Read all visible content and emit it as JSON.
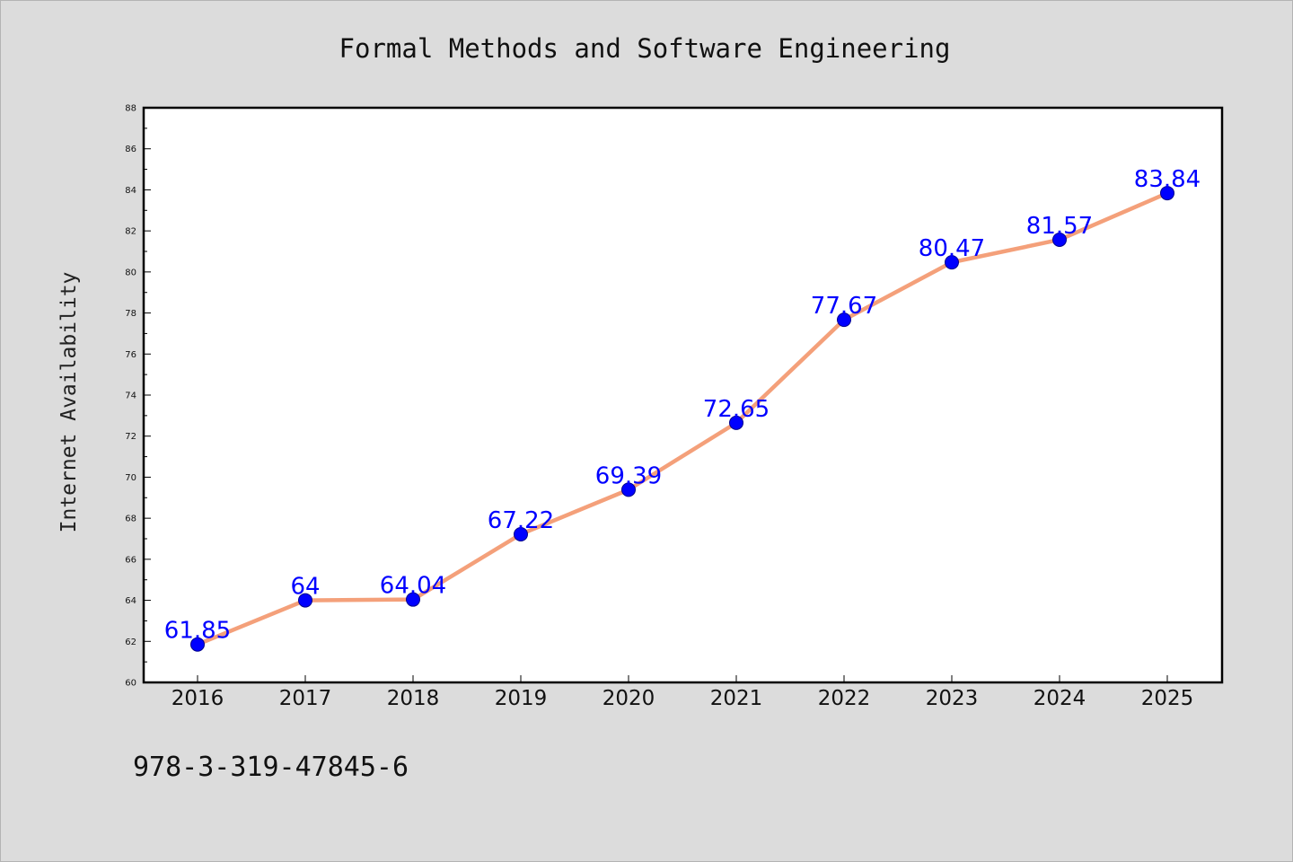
{
  "chart_data": {
    "type": "line",
    "title": "Formal Methods and Software Engineering",
    "xlabel": "",
    "ylabel": "Internet Availability",
    "categories": [
      "2016",
      "2017",
      "2018",
      "2019",
      "2020",
      "2021",
      "2022",
      "2023",
      "2024",
      "2025"
    ],
    "series": [
      {
        "values": [
          61.85,
          64,
          64.04,
          67.22,
          69.39,
          72.65,
          77.67,
          80.47,
          81.57,
          83.84
        ],
        "line_color": "#f4a07a",
        "marker_color": "#0000ff"
      }
    ],
    "data_labels": [
      "61.85",
      "64",
      "64.04",
      "67.22",
      "69.39",
      "72.65",
      "77.67",
      "80.47",
      "81.57",
      "83.84"
    ],
    "ylim": [
      60,
      88
    ],
    "yticks": [
      "60",
      "62",
      "64",
      "66",
      "68",
      "70",
      "72",
      "74",
      "76",
      "78",
      "80",
      "82",
      "84",
      "86",
      "88"
    ],
    "grid": false,
    "legend": "none",
    "label_color": "#0000ff"
  },
  "footer": {
    "isbn": "978-3-319-47845-6"
  }
}
